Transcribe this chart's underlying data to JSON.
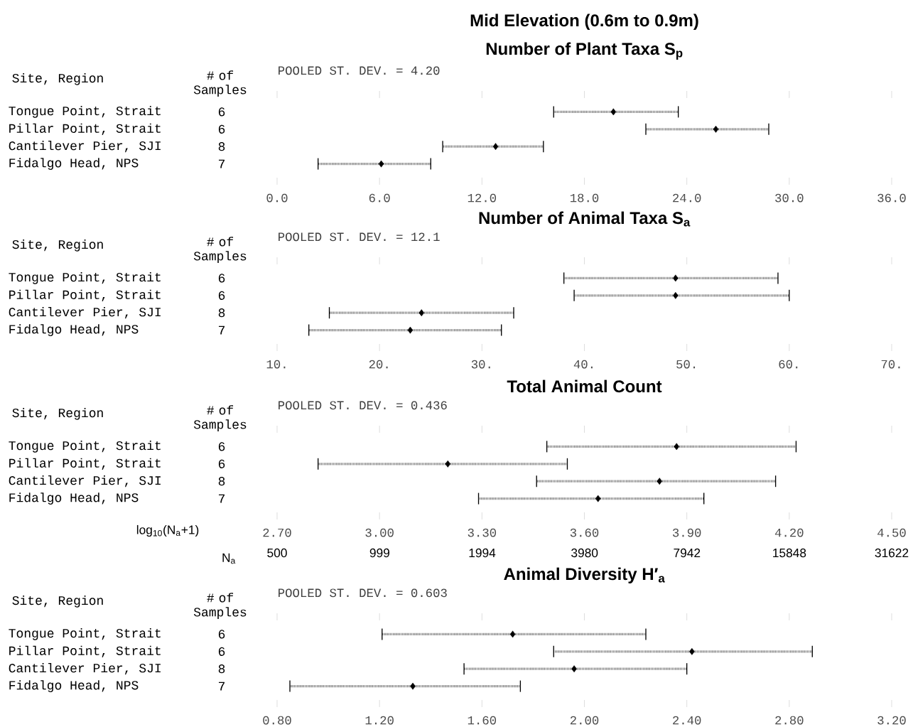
{
  "chart_data": [
    {
      "type": "scatter",
      "orientation": "horizontal",
      "title": "Mid Elevation  (0.6m to 0.9m)",
      "subtitle": "Number of Plant Taxa S$_{p}$",
      "ylabel": "Site, Region",
      "y2label": "# of Samples",
      "categories": [
        "Tongue Point, Strait",
        "Pillar Point, Strait",
        "Cantilever Pier, SJI",
        "Fidalgo Head, NPS"
      ],
      "y2_categories": [
        "6",
        "6",
        "8",
        "7"
      ],
      "values": [
        19.7,
        25.7,
        12.8,
        6.1
      ],
      "errors": [
        [
          16.2,
          23.5
        ],
        [
          21.6,
          28.8
        ],
        [
          9.7,
          15.6
        ],
        [
          2.4,
          9.0
        ]
      ],
      "xlim": [
        0,
        36
      ],
      "xticks": [
        {
          "value": 0,
          "label": "0.0"
        },
        {
          "value": 6,
          "label": "6.0"
        },
        {
          "value": 12,
          "label": "12.0"
        },
        {
          "value": 18,
          "label": "18.0"
        },
        {
          "value": 24,
          "label": "24.0"
        },
        {
          "value": 30,
          "label": "30.0"
        },
        {
          "value": 36,
          "label": "36.0"
        }
      ],
      "annotations": [
        "POOLED ST. DEV. =        4.20"
      ]
    },
    {
      "type": "scatter",
      "orientation": "horizontal",
      "title": "Number of Animal Taxa S$_{a}$",
      "ylabel": "Site, Region",
      "y2label": "# of Samples",
      "categories": [
        "Tongue Point, Strait",
        "Pillar Point, Strait",
        "Cantilever Pier, SJI",
        "Fidalgo Head, NPS"
      ],
      "y2_categories": [
        "6",
        "6",
        "8",
        "7"
      ],
      "values": [
        48.9,
        48.9,
        24.1,
        23.0
      ],
      "errors": [
        [
          38.0,
          58.9
        ],
        [
          39.0,
          60.0
        ],
        [
          15.1,
          33.1
        ],
        [
          13.1,
          31.9
        ]
      ],
      "xlim": [
        10,
        70
      ],
      "xticks": [
        {
          "value": 10,
          "label": "10."
        },
        {
          "value": 20,
          "label": "20."
        },
        {
          "value": 30,
          "label": "30."
        },
        {
          "value": 40,
          "label": "40."
        },
        {
          "value": 50,
          "label": "50."
        },
        {
          "value": 60,
          "label": "60."
        },
        {
          "value": 70,
          "label": "70."
        }
      ],
      "annotations": [
        "POOLED ST. DEV. =        12.1"
      ]
    },
    {
      "type": "scatter",
      "orientation": "horizontal",
      "title": "Total Animal Count",
      "ylabel": "Site, Region",
      "y2label": "# of Samples",
      "xlabel": "log$_{10}$(N$_{a}$+1)",
      "x2label": "N$_{a}$",
      "categories": [
        "Tongue Point, Strait",
        "Pillar Point, Strait",
        "Cantilever Pier, SJI",
        "Fidalgo Head, NPS"
      ],
      "y2_categories": [
        "6",
        "6",
        "8",
        "7"
      ],
      "values": [
        3.87,
        3.2,
        3.82,
        3.64
      ],
      "errors": [
        [
          3.49,
          4.22
        ],
        [
          2.82,
          3.55
        ],
        [
          3.46,
          4.16
        ],
        [
          3.29,
          3.95
        ]
      ],
      "xlim": [
        2.7,
        4.5
      ],
      "xticks": [
        {
          "value": 2.7,
          "label": "2.70"
        },
        {
          "value": 3.0,
          "label": "3.00"
        },
        {
          "value": 3.3,
          "label": "3.30"
        },
        {
          "value": 3.6,
          "label": "3.60"
        },
        {
          "value": 3.9,
          "label": "3.90"
        },
        {
          "value": 4.2,
          "label": "4.20"
        },
        {
          "value": 4.5,
          "label": "4.50"
        }
      ],
      "log": "x2",
      "x2lim": [
        500,
        31622
      ],
      "x2ticks": [
        500,
        999,
        1994,
        3980,
        7942,
        15848,
        31622
      ],
      "annotations": [
        "POOLED ST. DEV. =        0.436"
      ]
    },
    {
      "type": "scatter",
      "orientation": "horizontal",
      "title": "Animal Diversity H′$_{a}$",
      "ylabel": "Site, Region",
      "y2label": "# of Samples",
      "categories": [
        "Tongue Point, Strait",
        "Pillar Point, Strait",
        "Cantilever Pier, SJI",
        "Fidalgo Head, NPS"
      ],
      "y2_categories": [
        "6",
        "6",
        "8",
        "7"
      ],
      "values": [
        1.72,
        2.42,
        1.96,
        1.33
      ],
      "errors": [
        [
          1.21,
          2.24
        ],
        [
          1.88,
          2.89
        ],
        [
          1.53,
          2.4
        ],
        [
          0.85,
          1.75
        ]
      ],
      "xlim": [
        0.8,
        3.2
      ],
      "xticks": [
        {
          "value": 0.8,
          "label": "0.80"
        },
        {
          "value": 1.2,
          "label": "1.20"
        },
        {
          "value": 1.6,
          "label": "1.60"
        },
        {
          "value": 2.0,
          "label": "2.00"
        },
        {
          "value": 2.4,
          "label": "2.40"
        },
        {
          "value": 2.8,
          "label": "2.80"
        },
        {
          "value": 3.2,
          "label": "3.20"
        }
      ],
      "annotations": [
        "POOLED ST. DEV. =        0.603"
      ]
    }
  ]
}
